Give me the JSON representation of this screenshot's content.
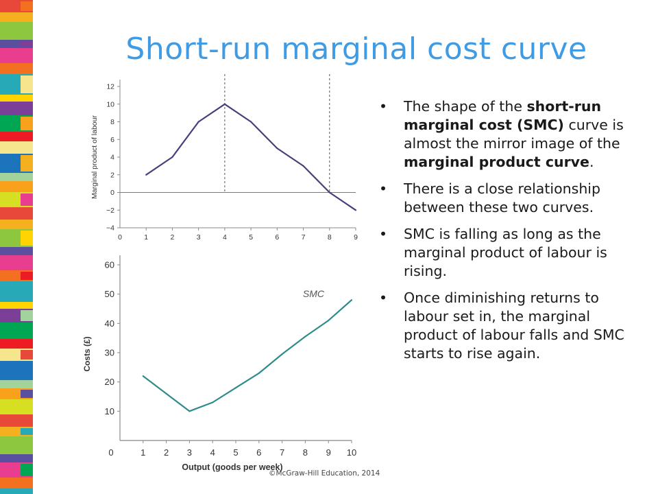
{
  "title": "Short-run marginal cost curve",
  "colors": {
    "title": "#3f9be3",
    "mp_line": "#4a3d7a",
    "smc_line": "#2f8a8c",
    "axis": "#888888",
    "stripes": [
      "#e8483a",
      "#f4b01e",
      "#8dc63f",
      "#5b4fa0",
      "#e93e8f",
      "#f37021",
      "#27a9b8",
      "#ffd400",
      "#7b3f98",
      "#00a651",
      "#ed1c24",
      "#f6e58d",
      "#1c75bc",
      "#a3d39c",
      "#f9a11b",
      "#d7df23"
    ]
  },
  "bullets": [
    [
      {
        "t": "The shape of the ",
        "b": false
      },
      {
        "t": "short-run marginal cost (SMC)",
        "b": true
      },
      {
        "t": " curve is almost the mirror image of the ",
        "b": false
      },
      {
        "t": "marginal product curve",
        "b": true
      },
      {
        "t": ".",
        "b": false
      }
    ],
    [
      {
        "t": "There is a close relationship between these two curves.",
        "b": false
      }
    ],
    [
      {
        "t": "SMC is falling as long as the marginal product of labour is rising.",
        "b": false
      }
    ],
    [
      {
        "t": "Once diminishing returns to labour set in, the marginal product of labour falls and SMC starts to rise again.",
        "b": false
      }
    ]
  ],
  "footer": "©McGraw-Hill Education, 2014",
  "chart_data": [
    {
      "type": "line",
      "title": "",
      "xlabel": "",
      "ylabel": "Marginal  product of labour",
      "xlim": [
        0,
        9
      ],
      "ylim": [
        -4,
        12
      ],
      "xticks": [
        0,
        1,
        2,
        3,
        4,
        5,
        6,
        7,
        8,
        9
      ],
      "yticks": [
        -4,
        -2,
        0,
        2,
        4,
        6,
        8,
        10,
        12
      ],
      "x": [
        1,
        2,
        3,
        4,
        5,
        6,
        7,
        8,
        9
      ],
      "series": [
        {
          "values": [
            2,
            4,
            8,
            10,
            8,
            5,
            3,
            0,
            -2
          ]
        }
      ],
      "reference_lines": [
        {
          "orientation": "vertical",
          "x": 4
        },
        {
          "orientation": "vertical",
          "x": 8
        },
        {
          "orientation": "horizontal",
          "y": 0
        }
      ],
      "grid": false
    },
    {
      "type": "line",
      "title": "",
      "xlabel": "Output (goods per week)",
      "ylabel": "Costs (£)",
      "xlim": [
        0,
        10
      ],
      "ylim": [
        0,
        60
      ],
      "xticks": [
        0,
        1,
        2,
        3,
        4,
        5,
        6,
        7,
        8,
        9,
        10
      ],
      "yticks": [
        10,
        20,
        30,
        40,
        50,
        60
      ],
      "x": [
        1,
        2,
        3,
        4,
        5,
        6,
        7,
        8,
        9,
        10
      ],
      "series": [
        {
          "name": "SMC",
          "values": [
            22,
            16,
            10,
            13,
            18,
            23,
            29.5,
            35.5,
            41,
            48
          ]
        }
      ],
      "grid": false
    }
  ]
}
